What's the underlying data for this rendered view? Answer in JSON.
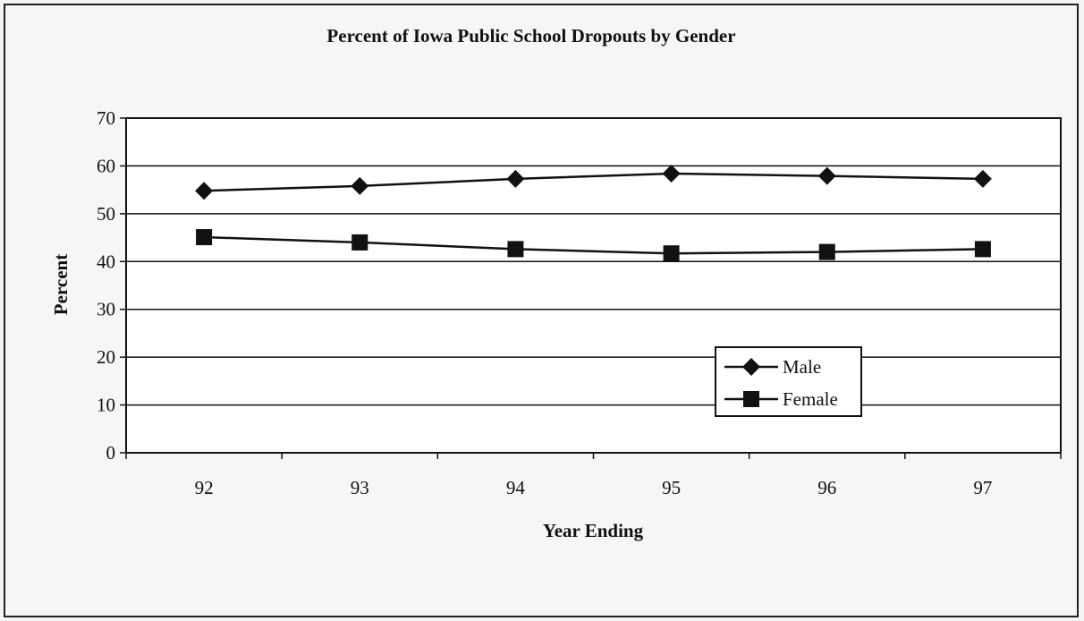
{
  "chart_data": {
    "type": "line",
    "title": "Percent of Iowa Public School Dropouts by Gender",
    "xlabel": "Year Ending",
    "ylabel": "Percent",
    "categories": [
      "92",
      "93",
      "94",
      "95",
      "96",
      "97"
    ],
    "ylim": [
      0,
      70
    ],
    "yticks": [
      0,
      10,
      20,
      30,
      40,
      50,
      60,
      70
    ],
    "grid": true,
    "legend_position": "lower-right",
    "series": [
      {
        "name": "Male",
        "marker": "diamond",
        "color": "#111111",
        "values": [
          54.8,
          55.8,
          57.3,
          58.4,
          57.9,
          57.3
        ]
      },
      {
        "name": "Female",
        "marker": "square",
        "color": "#111111",
        "values": [
          45.1,
          44.0,
          42.6,
          41.7,
          42.0,
          42.6
        ]
      }
    ]
  }
}
